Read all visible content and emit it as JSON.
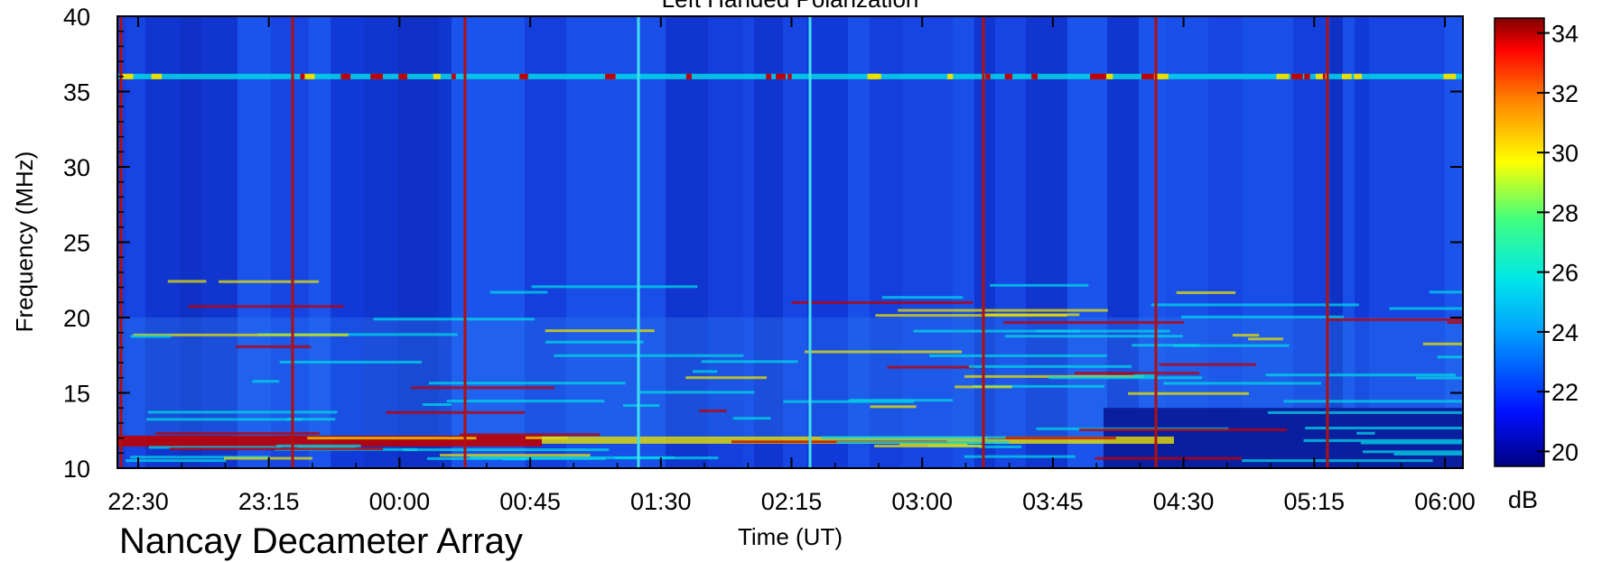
{
  "chart_data": {
    "type": "heatmap",
    "title": "Left Handed Polarization",
    "xlabel": "Time (UT)",
    "ylabel": "Frequency (MHz)",
    "ylim": [
      10,
      40
    ],
    "x_ticks": [
      "22:30",
      "23:15",
      "00:00",
      "00:45",
      "01:30",
      "02:15",
      "03:00",
      "03:45",
      "04:30",
      "05:15",
      "06:00"
    ],
    "y_ticks": [
      10,
      15,
      20,
      25,
      30,
      35,
      40
    ],
    "colorbar": {
      "label": "dB",
      "range": [
        19.5,
        34.5
      ],
      "ticks": [
        20,
        22,
        24,
        26,
        28,
        30,
        32,
        34
      ]
    },
    "colors": {
      "background": "#1440e0",
      "low": "#0a1fa0",
      "mid": "#00d6e6",
      "high": "#e8e000",
      "max": "#c00000",
      "cal_red": "#b01010",
      "cal_cyan": "#40e0f0"
    },
    "features": {
      "persistent_band_mhz": 36.0,
      "strong_band_mhz": 11.8,
      "noise_floor_db": 20.5
    }
  },
  "footer": {
    "instrument": "Nancay Decameter Array"
  }
}
